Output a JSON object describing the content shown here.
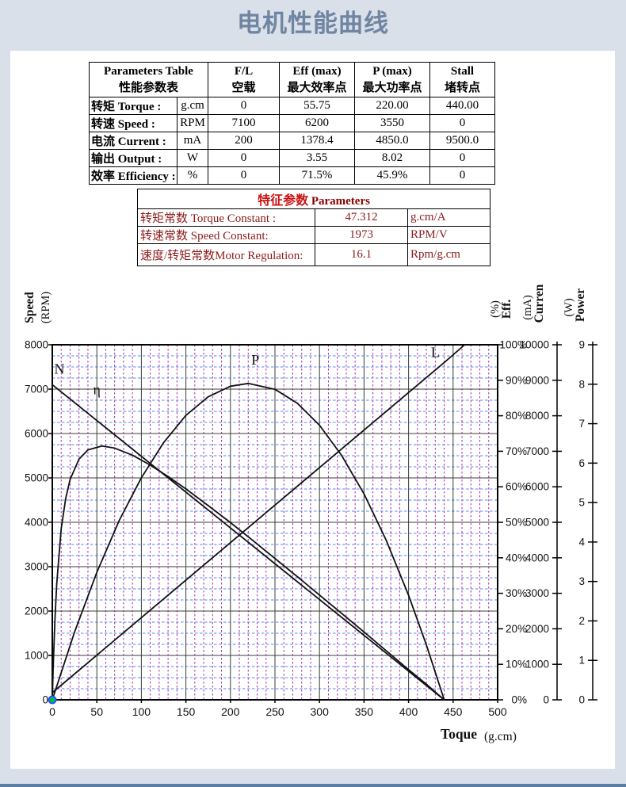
{
  "page": {
    "title": "电机性能曲线"
  },
  "performance_table": {
    "header": {
      "title_en": "Parameters Table",
      "title_cn": "性能参数表",
      "cols": [
        {
          "en": "F/L",
          "cn": "空载"
        },
        {
          "en": "Eff (max)",
          "cn": "最大效率点"
        },
        {
          "en": "P (max)",
          "cn": "最大功率点"
        },
        {
          "en": "Stall",
          "cn": "堵转点"
        }
      ]
    },
    "rows": [
      {
        "cn": "转矩",
        "en": "Torque :",
        "unit": "g.cm",
        "values": [
          "0",
          "55.75",
          "220.00",
          "440.00"
        ]
      },
      {
        "cn": "转速",
        "en": "Speed :",
        "unit": "RPM",
        "values": [
          "7100",
          "6200",
          "3550",
          "0"
        ]
      },
      {
        "cn": "电流",
        "en": "Current :",
        "unit": "mA",
        "values": [
          "200",
          "1378.4",
          "4850.0",
          "9500.0"
        ]
      },
      {
        "cn": "输出",
        "en": "Output :",
        "unit": "W",
        "values": [
          "0",
          "3.55",
          "8.02",
          "0"
        ]
      },
      {
        "cn": "效率",
        "en": "Efficiency :",
        "unit": "%",
        "values": [
          "0",
          "71.5%",
          "45.9%",
          "0"
        ]
      }
    ]
  },
  "characteristics_table": {
    "title_cn": "特征参数",
    "title_en": "Parameters",
    "rows": [
      {
        "label": "转矩常数 Torque Constant :",
        "value": "47.312",
        "unit": "g.cm/A"
      },
      {
        "label": "转速常数 Speed Constant:",
        "value": "1973",
        "unit": "RPM/V"
      },
      {
        "label": "速度/转矩常数Motor Regulation:",
        "value": "16.1",
        "unit": "Rpm/g.cm"
      }
    ]
  },
  "chart_data": {
    "type": "line",
    "xlabel": "Toque",
    "xlabel_unit": "(g.cm)",
    "x_axis": {
      "min": 0,
      "max": 500,
      "major": 50,
      "minor": 10
    },
    "axes": {
      "speed": {
        "label": "Speed",
        "unit": "(RPM)",
        "min": 0,
        "max": 8000,
        "major": 1000,
        "minor": 250,
        "side": "left",
        "tick_suffix": ""
      },
      "eff": {
        "label": "Eff.",
        "unit": "(%)",
        "min": 0,
        "max": 100,
        "major": 10,
        "side": "right",
        "tick_suffix": "%"
      },
      "current": {
        "label": "Curren",
        "unit": "(mA)",
        "min": 0,
        "max": 10000,
        "major": 1000,
        "side": "right",
        "tick_suffix": ""
      },
      "power": {
        "label": "Power",
        "unit": "(W)",
        "min": 0,
        "max": 9,
        "major": 1,
        "side": "right",
        "tick_suffix": ""
      }
    },
    "series": [
      {
        "name": "N",
        "axis": "speed",
        "label_at": [
          8,
          7350
        ],
        "points": [
          [
            0,
            7100
          ],
          [
            440,
            0
          ]
        ]
      },
      {
        "name": "η",
        "axis": "eff",
        "label_at": [
          50,
          86
        ],
        "points": [
          [
            0,
            0
          ],
          [
            1,
            9.1
          ],
          [
            3,
            22.9
          ],
          [
            5,
            32.7
          ],
          [
            10,
            48.1
          ],
          [
            15,
            56.7
          ],
          [
            20,
            62.1
          ],
          [
            30,
            67.8
          ],
          [
            40,
            70.4
          ],
          [
            55.75,
            71.5
          ],
          [
            70,
            70.9
          ],
          [
            90,
            68.9
          ],
          [
            110,
            66.1
          ],
          [
            130,
            62.9
          ],
          [
            150,
            59.4
          ],
          [
            175,
            54.7
          ],
          [
            200,
            49.9
          ],
          [
            225,
            44.9
          ],
          [
            250,
            39.8
          ],
          [
            275,
            34.7
          ],
          [
            300,
            29.5
          ],
          [
            325,
            24.3
          ],
          [
            350,
            19.1
          ],
          [
            375,
            13.8
          ],
          [
            400,
            8.5
          ],
          [
            420,
            4.4
          ],
          [
            440,
            0
          ]
        ]
      },
      {
        "name": "P",
        "axis": "power",
        "label_at": [
          228,
          8.5
        ],
        "points": [
          [
            0,
            0
          ],
          [
            25,
            1.72
          ],
          [
            50,
            3.23
          ],
          [
            75,
            4.54
          ],
          [
            100,
            5.63
          ],
          [
            125,
            6.52
          ],
          [
            150,
            7.21
          ],
          [
            175,
            7.68
          ],
          [
            200,
            7.95
          ],
          [
            220,
            8.02
          ],
          [
            250,
            7.87
          ],
          [
            275,
            7.52
          ],
          [
            300,
            6.96
          ],
          [
            325,
            6.19
          ],
          [
            350,
            5.22
          ],
          [
            375,
            4.04
          ],
          [
            400,
            2.65
          ],
          [
            420,
            1.39
          ],
          [
            440,
            0
          ]
        ]
      },
      {
        "name": "L",
        "axis": "current",
        "label_at": [
          430,
          9650
        ],
        "points": [
          [
            0,
            200
          ],
          [
            440,
            9500
          ],
          [
            463,
            10000
          ]
        ]
      }
    ],
    "origin_marker": {
      "x": 0,
      "y": 0,
      "fill": "#00b84a",
      "stroke": "#2a52ff"
    },
    "colors": {
      "major_grid": "#3c3c3c",
      "minor_h": "#5b84f0",
      "minor_v": "#a829a8",
      "curve": "#111111",
      "border": "#000000"
    },
    "legend_position": "inline-labels",
    "grid": true
  }
}
